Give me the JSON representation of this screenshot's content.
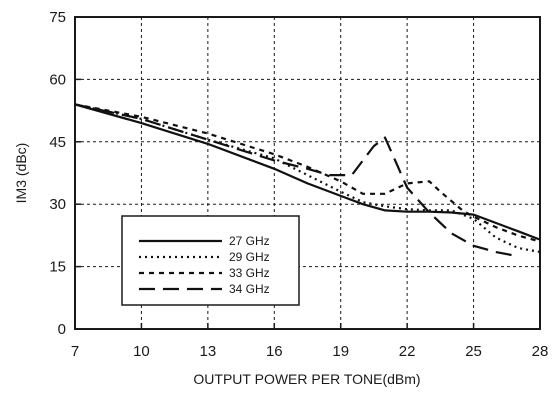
{
  "chart_data": {
    "type": "line",
    "title": "",
    "xlabel": "OUTPUT POWER PER TONE(dBm)",
    "ylabel": "IM3 (dBc)",
    "xlim": [
      7,
      28
    ],
    "ylim": [
      0,
      75
    ],
    "x_ticks": [
      7,
      10,
      13,
      16,
      19,
      22,
      25,
      28
    ],
    "y_ticks": [
      0,
      15,
      30,
      45,
      60,
      75
    ],
    "grid": true,
    "legend_position": "bottom-left",
    "series": [
      {
        "name": "27 GHz",
        "dash": "solid",
        "x": [
          7,
          10,
          13,
          16,
          17.5,
          19,
          20,
          21,
          22,
          23,
          24,
          25,
          26,
          27,
          28
        ],
        "y": [
          54,
          49.5,
          44.5,
          38.5,
          35,
          32,
          30,
          28.5,
          28.2,
          28.2,
          28,
          27.5,
          25.5,
          23.5,
          21.5
        ]
      },
      {
        "name": "29 GHz",
        "dash": "dotted",
        "x": [
          7,
          10,
          13,
          16,
          17.5,
          19,
          20,
          21,
          22,
          23,
          24,
          25,
          26,
          27,
          28
        ],
        "y": [
          54,
          50.5,
          45.5,
          41,
          37,
          33,
          30.5,
          29.5,
          28.8,
          28.5,
          28.5,
          26.5,
          22,
          19.5,
          18.5
        ]
      },
      {
        "name": "33 GHz",
        "dash": "short-dash",
        "x": [
          7,
          10,
          13,
          16,
          17.5,
          19,
          20,
          21,
          22,
          23,
          23.5,
          24.5,
          25,
          26,
          27,
          28
        ],
        "y": [
          54,
          51,
          47,
          42,
          39,
          35.5,
          32.5,
          32.5,
          35,
          35.5,
          33,
          28.5,
          27,
          24.5,
          22.5,
          21
        ]
      },
      {
        "name": "34 GHz",
        "dash": "long-dash",
        "x": [
          7,
          10,
          13,
          16,
          17.5,
          18.5,
          19.5,
          20.5,
          21,
          21.5,
          22,
          23,
          24,
          25,
          26,
          27
        ],
        "y": [
          54,
          50.5,
          45.5,
          40.5,
          38.5,
          37,
          37,
          44,
          46,
          40,
          34,
          28,
          23,
          20,
          18.5,
          17.5
        ]
      }
    ]
  }
}
